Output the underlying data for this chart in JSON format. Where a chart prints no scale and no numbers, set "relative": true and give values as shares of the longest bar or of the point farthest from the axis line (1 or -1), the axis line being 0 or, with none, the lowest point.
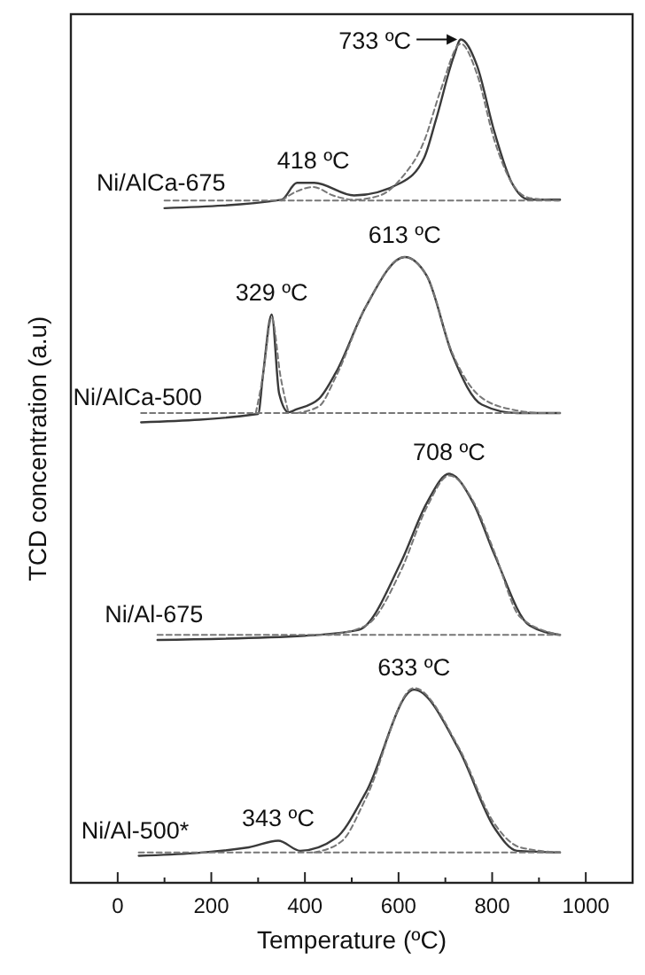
{
  "chart_data": {
    "type": "line",
    "relative": true,
    "xlabel": "Temperature (ºC)",
    "ylabel": "TCD concentration (a.u)",
    "xlim": [
      -100,
      1100
    ],
    "xticks": [
      0,
      {
        "value": 100,
        "label": null
      },
      200,
      {
        "value": 300,
        "label": null
      },
      400,
      {
        "value": 500,
        "label": null
      },
      600,
      {
        "value": 700,
        "label": null
      },
      800,
      {
        "value": 900,
        "label": null
      },
      1000
    ],
    "grid": false,
    "marker": "none",
    "series": [
      {
        "name": "Ni/AlCa-675",
        "color": "#3a3a3a",
        "line_style": "solid",
        "x": [
          100,
          350,
          383,
          420,
          505,
          605,
          655,
          680,
          718,
          733,
          767,
          805,
          842,
          880,
          945
        ],
        "values": [
          0.8,
          0.81,
          0.83,
          0.83,
          0.815,
          0.83,
          0.86,
          0.905,
          0.98,
          1.0,
          0.97,
          0.89,
          0.83,
          0.81,
          0.81
        ]
      },
      {
        "color": "#777777",
        "line_style": "dashed",
        "x": [
          350,
          383,
          418,
          460,
          505,
          560,
          605,
          655,
          690,
          733,
          767,
          805,
          842,
          880,
          945
        ],
        "values": [
          0.809,
          0.82,
          0.825,
          0.815,
          0.81,
          0.815,
          0.835,
          0.88,
          0.94,
          0.995,
          0.96,
          0.88,
          0.83,
          0.812,
          0.809
        ]
      },
      {
        "color": "#777777",
        "line_style": "dashed",
        "x": [
          100,
          945
        ],
        "values": [
          0.809,
          0.809
        ]
      },
      {
        "name": "Ni/AlCa-500",
        "color": "#3a3a3a",
        "line_style": "solid",
        "x": [
          50,
          300,
          310,
          329,
          345,
          365,
          380,
          430,
          466,
          530,
          613,
          660,
          715,
          778,
          853,
          945
        ],
        "values": [
          0.546,
          0.556,
          0.6,
          0.674,
          0.58,
          0.558,
          0.561,
          0.574,
          0.605,
          0.683,
          0.742,
          0.72,
          0.626,
          0.567,
          0.557,
          0.557
        ]
      },
      {
        "color": "#777777",
        "line_style": "dashed",
        "x": [
          295,
          310,
          329,
          348,
          365
        ],
        "values": [
          0.557,
          0.6,
          0.67,
          0.6,
          0.557
        ]
      },
      {
        "color": "#777777",
        "line_style": "dashed",
        "x": [
          380,
          430,
          466,
          530,
          613,
          660,
          715,
          778,
          853,
          900
        ],
        "values": [
          0.557,
          0.565,
          0.6,
          0.683,
          0.742,
          0.72,
          0.628,
          0.575,
          0.56,
          0.557
        ]
      },
      {
        "color": "#777777",
        "line_style": "dashed",
        "x": [
          50,
          945
        ],
        "values": [
          0.557,
          0.557
        ]
      },
      {
        "name": "Ni/Al-675",
        "color": "#3a3a3a",
        "line_style": "solid",
        "x": [
          85,
          400,
          515,
          605,
          660,
          708,
          760,
          805,
          880,
          945
        ],
        "values": [
          0.288,
          0.293,
          0.3,
          0.38,
          0.45,
          0.485,
          0.45,
          0.389,
          0.305,
          0.294
        ]
      },
      {
        "color": "#777777",
        "line_style": "dashed",
        "x": [
          450,
          530,
          605,
          660,
          708,
          760,
          805,
          860,
          945
        ],
        "values": [
          0.294,
          0.305,
          0.37,
          0.445,
          0.483,
          0.452,
          0.392,
          0.315,
          0.294
        ]
      },
      {
        "color": "#777777",
        "line_style": "dashed",
        "x": [
          85,
          945
        ],
        "values": [
          0.294,
          0.294
        ]
      },
      {
        "name": "Ni/Al-500*",
        "color": "#3a3a3a",
        "line_style": "solid",
        "x": [
          45,
          280,
          343,
          390,
          466,
          530,
          633,
          729,
          805,
          853,
          945
        ],
        "values": [
          0.032,
          0.042,
          0.05,
          0.038,
          0.053,
          0.107,
          0.229,
          0.158,
          0.065,
          0.038,
          0.036
        ]
      },
      {
        "color": "#777777",
        "line_style": "dashed",
        "x": [
          420,
          480,
          530,
          633,
          729,
          805,
          860,
          945
        ],
        "values": [
          0.036,
          0.05,
          0.1,
          0.231,
          0.16,
          0.07,
          0.042,
          0.036
        ]
      },
      {
        "color": "#777777",
        "line_style": "dashed",
        "x": [
          45,
          945
        ],
        "values": [
          0.036,
          0.036
        ]
      }
    ],
    "annotations": [
      {
        "text": "733 ºC",
        "x": 733,
        "y": 1.0
      },
      {
        "text": "418 ºC",
        "x": 418,
        "y": 0.83
      },
      {
        "text": "613 ºC",
        "x": 613,
        "y": 0.742
      },
      {
        "text": "329 ºC",
        "x": 329,
        "y": 0.674
      },
      {
        "text": "708 ºC",
        "x": 708,
        "y": 0.485
      },
      {
        "text": "633 ºC",
        "x": 633,
        "y": 0.229
      },
      {
        "text": "343 ºC",
        "x": 343,
        "y": 0.05
      }
    ]
  }
}
